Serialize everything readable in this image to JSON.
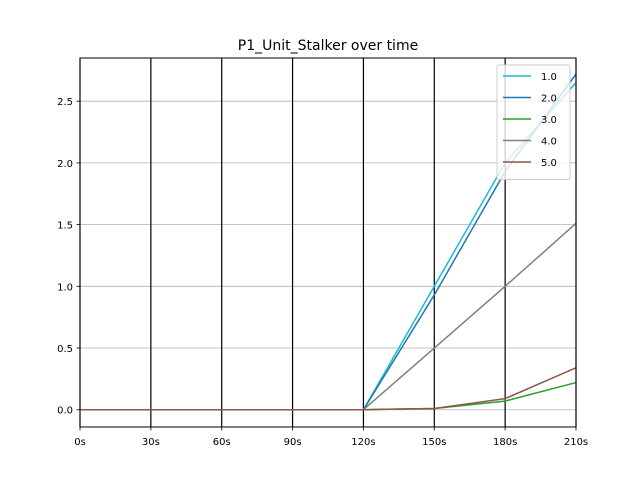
{
  "chart_data": {
    "type": "line",
    "title": "P1_Unit_Stalker over time",
    "xlabel": "",
    "ylabel": "",
    "x": [
      0,
      30,
      60,
      90,
      120,
      150,
      180,
      210
    ],
    "x_tick_labels": [
      "0s",
      "30s",
      "60s",
      "90s",
      "120s",
      "150s",
      "180s",
      "210s"
    ],
    "xlim": [
      0,
      210
    ],
    "ylim": [
      -0.14,
      2.85
    ],
    "y_ticks": [
      0.0,
      0.5,
      1.0,
      1.5,
      2.0,
      2.5
    ],
    "y_tick_labels": [
      "0.0",
      "0.5",
      "1.0",
      "1.5",
      "2.0",
      "2.5"
    ],
    "grid": "horizontal gridlines at y ticks; black vertical lines at x ticks",
    "legend_position": "top-right",
    "series": [
      {
        "name": "1.0",
        "color": "#17becf",
        "values": [
          0,
          0,
          0,
          0,
          0,
          1.0,
          2.0,
          2.65
        ]
      },
      {
        "name": "2.0",
        "color": "#1f77b4",
        "values": [
          0,
          0,
          0,
          0,
          0,
          0.93,
          1.93,
          2.72
        ]
      },
      {
        "name": "3.0",
        "color": "#2ca02c",
        "values": [
          0,
          0,
          0,
          0,
          0,
          0.01,
          0.07,
          0.22
        ]
      },
      {
        "name": "4.0",
        "color": "#7f7f7f",
        "values": [
          0,
          0,
          0,
          0,
          0,
          0.5,
          1.0,
          1.51
        ]
      },
      {
        "name": "5.0",
        "color": "#8c564b",
        "values": [
          0,
          0,
          0,
          0,
          0,
          0.01,
          0.09,
          0.34
        ]
      }
    ]
  }
}
